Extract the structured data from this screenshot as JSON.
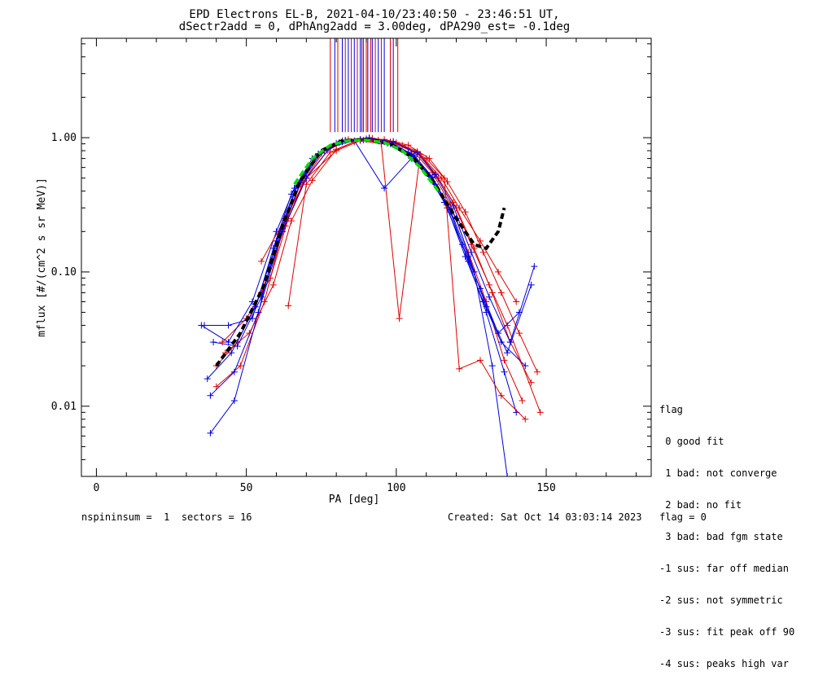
{
  "title": {
    "line1": "EPD Electrons EL-B, 2021-04-10/23:40:50 - 23:46:51 UT,",
    "line2": "dSectr2add = 0, dPhAng2add = 3.00deg, dPA290_est=  -0.1deg"
  },
  "legend": {
    "title": "flag",
    "items": [
      " 0 good fit",
      " 1 bad: not converge",
      " 2 bad: no fit",
      " 3 bad: bad fgm state",
      "-1 sus: far off median",
      "-2 sus: not symmetric",
      "-3 sus: fit peak off 90",
      "-4 sus: peaks high var"
    ]
  },
  "footer": {
    "left": "nspininsum =  1  sectors = 16",
    "right": "Created: Sat Oct 14 03:03:14 2023   flag = 0"
  },
  "colors": {
    "red": "#e00000",
    "blue": "#0000e0",
    "green": "#00e000",
    "black": "#000000"
  },
  "chart_data": {
    "type": "line",
    "xlabel": "PA [deg]",
    "ylabel": "mflux [#/(cm^2 s sr MeV)]",
    "xlim": [
      -5,
      185
    ],
    "ylim": [
      0.003,
      5.5
    ],
    "yscale": "log",
    "xticks": [
      0,
      50,
      100,
      150
    ],
    "yticks": [
      {
        "value": 0.01,
        "label": "0.01"
      },
      {
        "value": 0.1,
        "label": "0.10"
      },
      {
        "value": 1.0,
        "label": "1.00"
      }
    ],
    "series": [
      {
        "color": "red",
        "x": [
          40,
          48,
          56,
          62,
          68,
          75,
          82,
          90,
          98,
          106,
          112,
          118,
          124,
          130,
          136,
          142
        ],
        "y": [
          0.014,
          0.02,
          0.06,
          0.2,
          0.45,
          0.78,
          0.95,
          0.98,
          0.93,
          0.78,
          0.55,
          0.32,
          0.14,
          0.06,
          0.022,
          0.011
        ]
      },
      {
        "color": "blue",
        "x": [
          38,
          46,
          54,
          60,
          66,
          74,
          82,
          90,
          98,
          106,
          112,
          118,
          124,
          130,
          136,
          140
        ],
        "y": [
          0.012,
          0.018,
          0.05,
          0.17,
          0.4,
          0.75,
          0.93,
          0.97,
          0.9,
          0.72,
          0.5,
          0.28,
          0.12,
          0.05,
          0.018,
          0.009
        ]
      },
      {
        "color": "red",
        "x": [
          42,
          50,
          58,
          64,
          70,
          77,
          84,
          92,
          100,
          108,
          114,
          120,
          126,
          132,
          138,
          145
        ],
        "y": [
          0.03,
          0.045,
          0.09,
          0.25,
          0.5,
          0.8,
          0.97,
          0.99,
          0.92,
          0.75,
          0.5,
          0.3,
          0.15,
          0.07,
          0.03,
          0.015
        ]
      },
      {
        "color": "blue",
        "x": [
          35,
          44,
          52,
          60,
          66,
          73,
          81,
          89,
          97,
          105,
          111,
          117,
          123,
          129,
          135,
          143
        ],
        "y": [
          0.04,
          0.03,
          0.06,
          0.2,
          0.42,
          0.72,
          0.92,
          0.96,
          0.91,
          0.76,
          0.52,
          0.3,
          0.13,
          0.06,
          0.03,
          0.02
        ]
      },
      {
        "color": "red",
        "x": [
          40,
          47,
          55,
          63,
          69,
          76,
          83,
          91,
          99,
          107,
          113,
          119,
          125,
          131,
          137,
          148
        ],
        "y": [
          0.02,
          0.03,
          0.07,
          0.22,
          0.47,
          0.8,
          0.96,
          1.0,
          0.94,
          0.79,
          0.54,
          0.33,
          0.16,
          0.08,
          0.04,
          0.009
        ]
      },
      {
        "color": "blue",
        "x": [
          37,
          45,
          53,
          61,
          67,
          74,
          82,
          90,
          98,
          106,
          112,
          118,
          124,
          130,
          137,
          145
        ],
        "y": [
          0.016,
          0.025,
          0.055,
          0.19,
          0.44,
          0.76,
          0.94,
          0.98,
          0.92,
          0.74,
          0.51,
          0.29,
          0.13,
          0.055,
          0.025,
          0.08
        ]
      },
      {
        "color": "red",
        "x": [
          55,
          63,
          70,
          80,
          88,
          95,
          101,
          108,
          115,
          121,
          128,
          134,
          140
        ],
        "y": [
          0.12,
          0.25,
          0.5,
          0.8,
          0.95,
          0.9,
          0.045,
          0.75,
          0.5,
          0.3,
          0.17,
          0.1,
          0.06
        ]
      },
      {
        "color": "blue",
        "x": [
          38,
          46,
          54,
          62,
          70,
          78,
          86,
          96,
          105,
          113,
          120,
          126,
          132,
          137
        ],
        "y": [
          0.0063,
          0.011,
          0.05,
          0.2,
          0.5,
          0.85,
          0.95,
          0.42,
          0.7,
          0.45,
          0.25,
          0.1,
          0.02,
          0.003
        ]
      },
      {
        "color": "red",
        "x": [
          43,
          51,
          59,
          65,
          72,
          80,
          88,
          96,
          104,
          111,
          117,
          123,
          129,
          135,
          141,
          147
        ],
        "y": [
          0.025,
          0.035,
          0.08,
          0.24,
          0.48,
          0.82,
          0.97,
          0.97,
          0.88,
          0.7,
          0.47,
          0.28,
          0.14,
          0.07,
          0.035,
          0.018
        ]
      },
      {
        "color": "blue",
        "x": [
          36,
          44,
          52,
          59,
          65,
          72,
          80,
          88,
          96,
          104,
          110,
          116,
          122,
          128,
          134,
          141
        ],
        "y": [
          0.04,
          0.04,
          0.045,
          0.15,
          0.38,
          0.7,
          0.91,
          0.97,
          0.93,
          0.78,
          0.55,
          0.33,
          0.16,
          0.075,
          0.035,
          0.05
        ]
      },
      {
        "color": "red",
        "x": [
          64,
          70,
          78,
          86,
          94,
          102,
          110,
          116,
          121,
          128,
          135,
          143
        ],
        "y": [
          0.056,
          0.45,
          0.78,
          0.93,
          0.96,
          0.88,
          0.7,
          0.5,
          0.019,
          0.022,
          0.012,
          0.008
        ]
      },
      {
        "color": "blue",
        "x": [
          39,
          47,
          55,
          62,
          68,
          75,
          83,
          91,
          99,
          107,
          113,
          119,
          125,
          131,
          138,
          146
        ],
        "y": [
          0.03,
          0.028,
          0.065,
          0.21,
          0.46,
          0.77,
          0.95,
          0.99,
          0.93,
          0.77,
          0.53,
          0.31,
          0.14,
          0.065,
          0.03,
          0.11
        ]
      }
    ],
    "model_fit": {
      "color": "black",
      "style": "dashed",
      "x": [
        40,
        48,
        56,
        62,
        68,
        75,
        82,
        90,
        98,
        106,
        113,
        120,
        126,
        130,
        134,
        136
      ],
      "y": [
        0.02,
        0.035,
        0.08,
        0.22,
        0.48,
        0.8,
        0.95,
        0.97,
        0.9,
        0.7,
        0.45,
        0.25,
        0.16,
        0.15,
        0.2,
        0.3
      ]
    },
    "median_fit": {
      "color": "green",
      "style": "dashed",
      "x": [
        66,
        72,
        78,
        84,
        90,
        96,
        102,
        108,
        114
      ],
      "y": [
        0.45,
        0.7,
        0.88,
        0.95,
        0.96,
        0.92,
        0.8,
        0.6,
        0.4
      ]
    },
    "vertical_lines": {
      "ymin": 1.1,
      "red": [
        78,
        80.5,
        83,
        85,
        87,
        88.5,
        90,
        91.5,
        93,
        95,
        98,
        100.5
      ],
      "blue": [
        79.5,
        82,
        84,
        86,
        88,
        89,
        90.5,
        92,
        94,
        96,
        99
      ]
    }
  }
}
